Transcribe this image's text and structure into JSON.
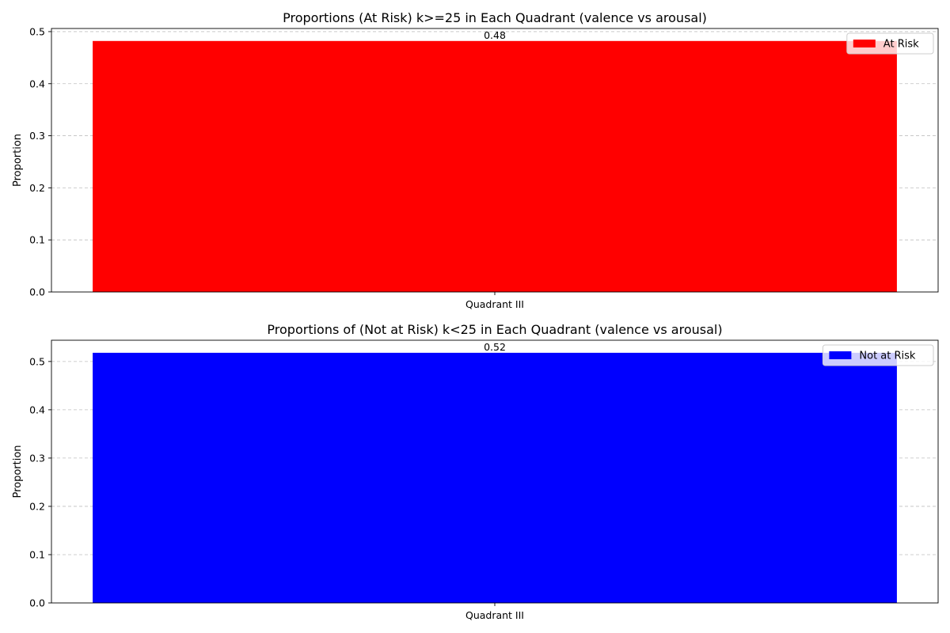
{
  "chart_data": [
    {
      "type": "bar",
      "title": "Proportions (At Risk) k>=25 in Each Quadrant (valence vs arousal)",
      "xlabel": "",
      "ylabel": "Proportion",
      "categories": [
        "Quadrant III"
      ],
      "series": [
        {
          "name": "At Risk",
          "values": [
            0.482
          ],
          "color": "#ff0000"
        }
      ],
      "data_labels": [
        "0.48"
      ],
      "ylim": [
        0,
        0.506
      ],
      "yticks": [
        0.0,
        0.1,
        0.2,
        0.3,
        0.4,
        0.5
      ],
      "ytick_labels": [
        "0.0",
        "0.1",
        "0.2",
        "0.3",
        "0.4",
        "0.5"
      ],
      "grid": "y-dashed",
      "legend_placement": "top-right"
    },
    {
      "type": "bar",
      "title": "Proportions of (Not at Risk) k<25 in Each Quadrant (valence vs arousal)",
      "xlabel": "",
      "ylabel": "Proportion",
      "categories": [
        "Quadrant III"
      ],
      "series": [
        {
          "name": "Not at Risk",
          "values": [
            0.518
          ],
          "color": "#0000ff"
        }
      ],
      "data_labels": [
        "0.52"
      ],
      "ylim": [
        0,
        0.544
      ],
      "yticks": [
        0.0,
        0.1,
        0.2,
        0.3,
        0.4,
        0.5
      ],
      "ytick_labels": [
        "0.0",
        "0.1",
        "0.2",
        "0.3",
        "0.4",
        "0.5"
      ],
      "grid": "y-dashed",
      "legend_placement": "top-right"
    }
  ]
}
